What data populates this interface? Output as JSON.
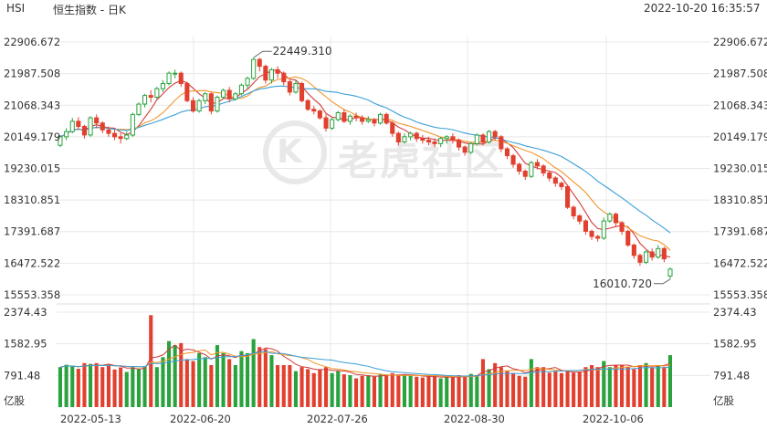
{
  "header": {
    "symbol": "HSI",
    "name": "恒生指数 - 日K",
    "datetime": "2022-10-20 16:35:57"
  },
  "watermark": {
    "text": "老虎社区"
  },
  "colors": {
    "up": "#2aa33e",
    "down": "#e2402f",
    "ma_short": "#d23b3b",
    "ma_mid": "#f0952a",
    "ma_long": "#3a9fd8",
    "grid": "#e8e8e8"
  },
  "chart_data": {
    "type": "candlestick",
    "price_axis": {
      "ticks": [
        "22906.672",
        "21987.508",
        "21068.343",
        "20149.179",
        "19230.015",
        "18310.851",
        "17391.687",
        "16472.522",
        "15553.358"
      ],
      "range": [
        15553.358,
        22906.672
      ]
    },
    "volume_axis": {
      "ticks": [
        "2374.43",
        "1582.95",
        "791.48"
      ],
      "unit": "亿股",
      "range": [
        0,
        2374.43
      ]
    },
    "x_ticks": [
      "2022-05-13",
      "2022-06-20",
      "2022-07-26",
      "2022-08-30",
      "2022-10-06"
    ],
    "annotations": [
      {
        "label": "22449.310",
        "type": "high"
      },
      {
        "label": "16010.720",
        "type": "low"
      }
    ],
    "candles": [
      [
        19900,
        20150,
        20200,
        19850,
        1000
      ],
      [
        20150,
        20300,
        20400,
        20050,
        1060
      ],
      [
        20300,
        20600,
        20700,
        20250,
        1020
      ],
      [
        20600,
        20450,
        20720,
        20350,
        960
      ],
      [
        20450,
        20200,
        20500,
        20100,
        1100
      ],
      [
        20200,
        20700,
        20750,
        20150,
        1080
      ],
      [
        20700,
        20550,
        20800,
        20400,
        1100
      ],
      [
        20550,
        20350,
        20600,
        20250,
        1000
      ],
      [
        20350,
        20250,
        20450,
        20150,
        1080
      ],
      [
        20250,
        20150,
        20350,
        20050,
        940
      ],
      [
        20150,
        20100,
        20250,
        19950,
        990
      ],
      [
        20100,
        20200,
        20300,
        20050,
        880
      ],
      [
        20200,
        20800,
        20850,
        20150,
        1000
      ],
      [
        20800,
        21100,
        21150,
        20750,
        950
      ],
      [
        21100,
        21350,
        21400,
        21000,
        1020
      ],
      [
        21350,
        21300,
        21500,
        21150,
        2300
      ],
      [
        21300,
        21550,
        21600,
        21250,
        1000
      ],
      [
        21550,
        21700,
        21800,
        21450,
        1250
      ],
      [
        21700,
        22000,
        22050,
        21650,
        1650
      ],
      [
        22000,
        22000,
        22100,
        21850,
        1550
      ],
      [
        22000,
        21700,
        22050,
        21600,
        1600
      ],
      [
        21700,
        21200,
        21750,
        21150,
        1200
      ],
      [
        21200,
        20900,
        21300,
        20850,
        1150
      ],
      [
        20900,
        21200,
        21250,
        20850,
        1350
      ],
      [
        21200,
        21400,
        21450,
        21100,
        1250
      ],
      [
        21400,
        20900,
        21450,
        20800,
        1050
      ],
      [
        20900,
        21300,
        21350,
        20850,
        1550
      ],
      [
        21300,
        21500,
        21550,
        21250,
        1350
      ],
      [
        21500,
        21250,
        21600,
        21150,
        1200
      ],
      [
        21250,
        21400,
        21450,
        21200,
        1050
      ],
      [
        21400,
        21650,
        21700,
        21350,
        1400
      ],
      [
        21650,
        21850,
        21900,
        21550,
        1350
      ],
      [
        21850,
        22400,
        22449,
        21800,
        1700
      ],
      [
        22400,
        22200,
        22449,
        22050,
        1500
      ],
      [
        22200,
        21800,
        22250,
        21700,
        1450
      ],
      [
        21800,
        22100,
        22150,
        21700,
        1300
      ],
      [
        22100,
        22000,
        22200,
        21850,
        1050
      ],
      [
        22000,
        21750,
        22050,
        21650,
        1050
      ],
      [
        21750,
        21450,
        21800,
        21350,
        1050
      ],
      [
        21450,
        21700,
        21800,
        21400,
        900
      ],
      [
        21700,
        21200,
        21750,
        21150,
        1000
      ],
      [
        21200,
        20950,
        21250,
        20900,
        950
      ],
      [
        20950,
        20900,
        21050,
        20800,
        850
      ],
      [
        20900,
        20700,
        20950,
        20650,
        950
      ],
      [
        20700,
        20400,
        20800,
        20300,
        1000
      ],
      [
        20400,
        20650,
        20700,
        20350,
        850
      ],
      [
        20650,
        20850,
        20900,
        20600,
        900
      ],
      [
        20850,
        20600,
        20950,
        20550,
        820
      ],
      [
        20600,
        20750,
        20800,
        20500,
        800
      ],
      [
        20750,
        20700,
        20850,
        20600,
        720
      ],
      [
        20700,
        20600,
        20780,
        20500,
        780
      ],
      [
        20600,
        20650,
        20750,
        20550,
        800
      ],
      [
        20650,
        20550,
        20700,
        20450,
        760
      ],
      [
        20550,
        20800,
        20850,
        20500,
        820
      ],
      [
        20800,
        20550,
        20850,
        20500,
        800
      ],
      [
        20550,
        20250,
        20600,
        20150,
        850
      ],
      [
        20250,
        20000,
        20300,
        19900,
        800
      ],
      [
        20000,
        20150,
        20250,
        19950,
        800
      ],
      [
        20150,
        20250,
        20300,
        20050,
        780
      ],
      [
        20250,
        20100,
        20300,
        20000,
        760
      ],
      [
        20100,
        20050,
        20200,
        19950,
        740
      ],
      [
        20050,
        20000,
        20150,
        19900,
        780
      ],
      [
        20000,
        19950,
        20100,
        19850,
        760
      ],
      [
        19950,
        20100,
        20150,
        19850,
        720
      ],
      [
        20100,
        20150,
        20200,
        19950,
        760
      ],
      [
        20150,
        20050,
        20250,
        19950,
        740
      ],
      [
        20050,
        19850,
        20100,
        19750,
        800
      ],
      [
        19850,
        19700,
        19900,
        19600,
        760
      ],
      [
        19700,
        19950,
        20000,
        19650,
        830
      ],
      [
        19950,
        20200,
        20250,
        19900,
        800
      ],
      [
        20200,
        20000,
        20250,
        19900,
        1200
      ],
      [
        20000,
        20300,
        20350,
        19950,
        950
      ],
      [
        20300,
        20150,
        20350,
        20050,
        1100
      ],
      [
        20150,
        19800,
        20200,
        19700,
        1000
      ],
      [
        19800,
        19600,
        19850,
        19500,
        900
      ],
      [
        19600,
        19350,
        19650,
        19250,
        850
      ],
      [
        19350,
        19150,
        19400,
        19050,
        780
      ],
      [
        19150,
        19000,
        19200,
        18900,
        760
      ],
      [
        19000,
        19400,
        19450,
        18950,
        1200
      ],
      [
        19400,
        19300,
        19500,
        19200,
        1000
      ],
      [
        19300,
        19100,
        19350,
        19000,
        1000
      ],
      [
        19100,
        18950,
        19150,
        18850,
        860
      ],
      [
        18950,
        18800,
        19000,
        18700,
        900
      ],
      [
        18800,
        18700,
        18850,
        18600,
        850
      ],
      [
        18700,
        18100,
        18750,
        18050,
        900
      ],
      [
        18100,
        17850,
        18150,
        17750,
        860
      ],
      [
        17850,
        17700,
        17900,
        17600,
        880
      ],
      [
        17700,
        17400,
        17750,
        17300,
        1000
      ],
      [
        17400,
        17250,
        17450,
        17150,
        1050
      ],
      [
        17250,
        17200,
        17300,
        17100,
        1000
      ],
      [
        17200,
        17700,
        17800,
        17150,
        1150
      ],
      [
        17700,
        17900,
        17950,
        17650,
        1000
      ],
      [
        17900,
        17650,
        17950,
        17550,
        1050
      ],
      [
        17650,
        17400,
        17700,
        17300,
        1050
      ],
      [
        17400,
        17000,
        17450,
        16950,
        1000
      ],
      [
        17000,
        16700,
        17050,
        16600,
        950
      ],
      [
        16700,
        16500,
        16750,
        16400,
        1050
      ],
      [
        16500,
        16800,
        16850,
        16450,
        1100
      ],
      [
        16800,
        16650,
        16900,
        16550,
        1000
      ],
      [
        16650,
        16900,
        17000,
        16600,
        1050
      ],
      [
        16900,
        16600,
        16950,
        16500,
        1000
      ],
      [
        16100,
        16300,
        16350,
        16010.72,
        1300
      ]
    ]
  }
}
